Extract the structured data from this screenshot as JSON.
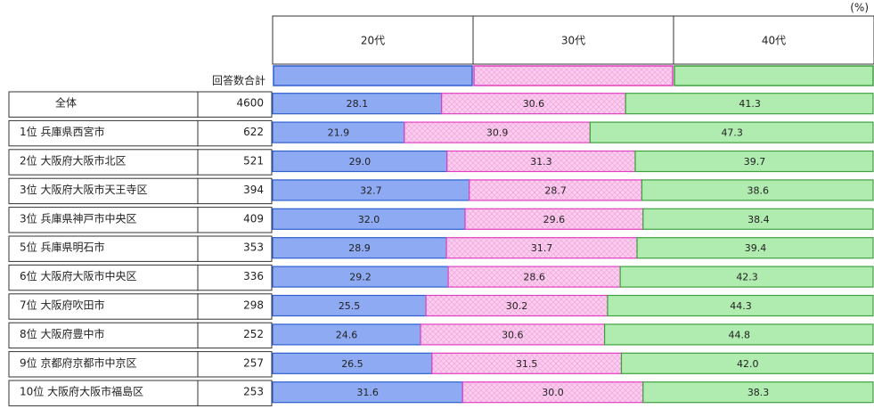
{
  "chart_data": {
    "type": "bar",
    "orientation": "horizontal",
    "stacked": true,
    "unit": "(%)",
    "count_header": "回答数合計",
    "categories": [
      "全体",
      "1位 兵庫県西宮市",
      "2位 大阪府大阪市北区",
      "3位 大阪府大阪市天王寺区",
      "3位 兵庫県神戸市中央区",
      "5位 兵庫県明石市",
      "6位 大阪府大阪市中央区",
      "7位 大阪府吹田市",
      "8位 大阪府豊中市",
      "9位 京都府京都市中京区",
      "10位 大阪府大阪市福島区"
    ],
    "counts": [
      4600,
      622,
      521,
      394,
      409,
      353,
      336,
      298,
      252,
      257,
      253
    ],
    "xlim": [
      0,
      100
    ],
    "series": [
      {
        "name": "20代",
        "color": "#8eaaf2",
        "edge": "#2f5fd0",
        "values": [
          28.1,
          21.9,
          29.0,
          32.7,
          32.0,
          28.9,
          29.2,
          25.5,
          24.6,
          26.5,
          31.6
        ],
        "value_labels": [
          "28.1",
          "21.9",
          "29.0",
          "32.7",
          "32.0",
          "28.9",
          "29.2",
          "25.5",
          "24.6",
          "26.5",
          "31.6"
        ]
      },
      {
        "name": "30代",
        "color": "#fbcdee",
        "edge": "#e040c0",
        "values": [
          30.6,
          30.9,
          31.3,
          28.7,
          29.6,
          31.7,
          28.6,
          30.2,
          30.6,
          31.5,
          30.0
        ],
        "value_labels": [
          "30.6",
          "30.9",
          "31.3",
          "28.7",
          "29.6",
          "31.7",
          "28.6",
          "30.2",
          "30.6",
          "31.5",
          "30.0"
        ]
      },
      {
        "name": "40代",
        "color": "#b0ecb0",
        "edge": "#3fa03f",
        "values": [
          41.3,
          47.3,
          39.7,
          38.6,
          38.4,
          39.4,
          42.3,
          44.3,
          44.8,
          42.0,
          38.3
        ],
        "value_labels": [
          "41.3",
          "47.3",
          "39.7",
          "38.6",
          "38.4",
          "39.4",
          "42.3",
          "44.3",
          "44.8",
          "42.0",
          "38.3"
        ]
      }
    ]
  }
}
